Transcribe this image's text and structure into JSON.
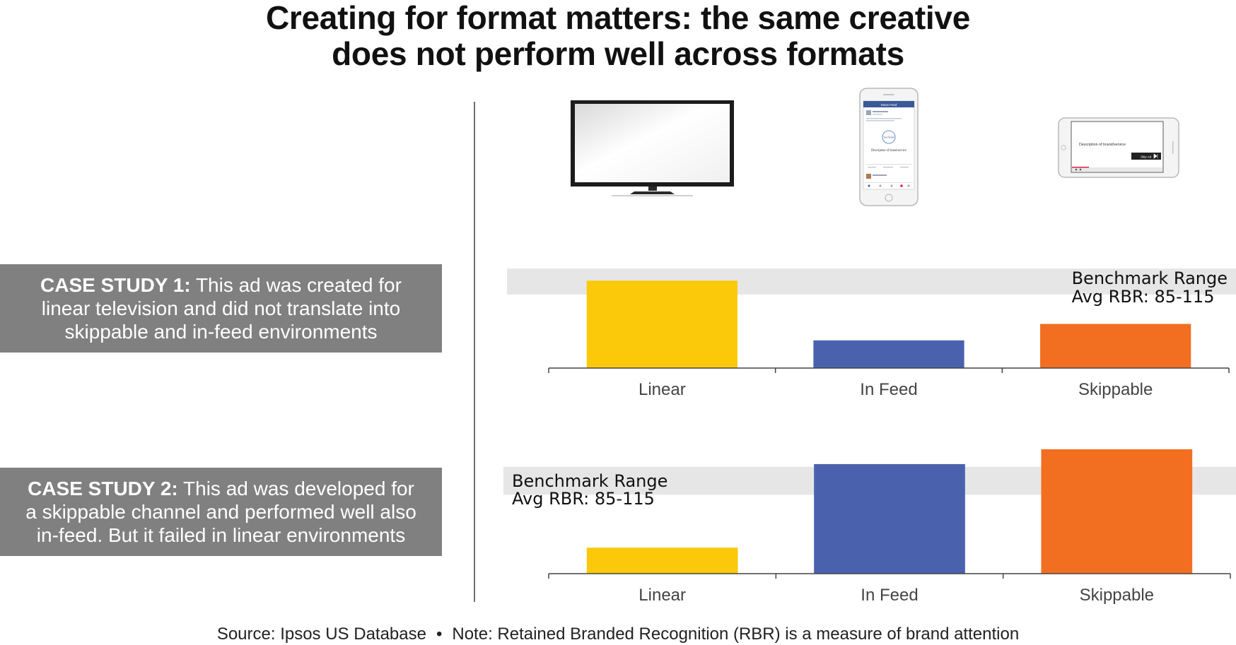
{
  "title": {
    "line1": "Creating for format matters: the same creative",
    "line2": "does not perform well across formats"
  },
  "case_studies": [
    {
      "label": "CASE STUDY 1:",
      "line1_rest": "This ad was created for",
      "line2": "linear television and did not translate into",
      "line3": "skippable and in-feed environments"
    },
    {
      "label": "CASE STUDY 2:",
      "line1_rest": "This ad was developed for",
      "line2": "a skippable channel and performed well also",
      "line3": "in-feed. But it failed in linear environments"
    }
  ],
  "devices": {
    "phone": {
      "header": "News Feed",
      "post_text": "Description of brand/service",
      "logo": "Your Brand"
    },
    "tablet": {
      "video_text": "Description of brand/service",
      "skip_label": "Skip Ad"
    }
  },
  "footer": {
    "source": "Source: Ipsos US Database",
    "separator": "•",
    "note": "Note: Retained Branded Recognition (RBR) is a measure of brand attention"
  },
  "colors": {
    "linear": "#fcc90a",
    "in_feed": "#4a62ae",
    "skippable": "#f26f21",
    "benchmark_band": "#e6e6e6",
    "case_box": "#808080"
  },
  "chart_data": [
    {
      "type": "bar",
      "categories": [
        "Linear",
        "In Feed",
        "Skippable"
      ],
      "values": [
        101,
        32,
        51
      ],
      "benchmark": {
        "label_line1": "Benchmark Range",
        "label_line2": "Avg RBR: 85-115",
        "range": [
          85,
          115
        ]
      },
      "ylim": [
        0,
        120
      ],
      "grid": false,
      "legend": "none"
    },
    {
      "type": "bar",
      "categories": [
        "Linear",
        "In Feed",
        "Skippable"
      ],
      "values": [
        28,
        118,
        134
      ],
      "benchmark": {
        "label_line1": "Benchmark Range",
        "label_line2": "Avg RBR: 85-115",
        "range": [
          85,
          115
        ]
      },
      "ylim": [
        0,
        140
      ],
      "grid": false,
      "legend": "none"
    }
  ]
}
